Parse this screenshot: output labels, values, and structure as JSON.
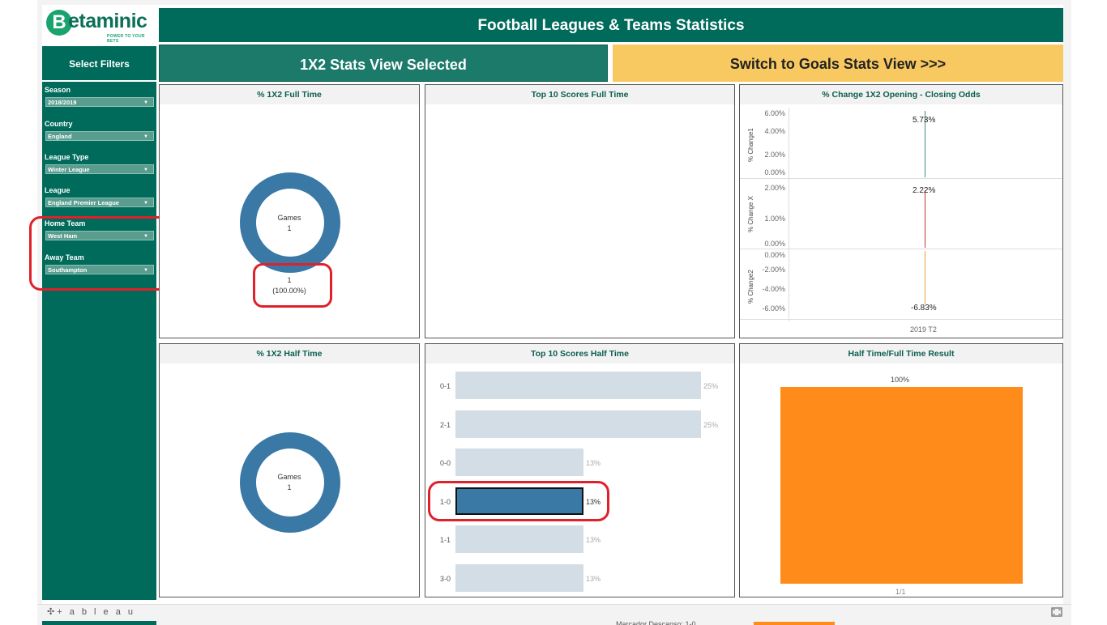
{
  "brand": {
    "name_b": "B",
    "name_rest": "etaminic",
    "tagline": "POWER TO YOUR BETS"
  },
  "header": {
    "title": "Football Leagues & Teams Statistics"
  },
  "sidebar": {
    "heading": "Select Filters",
    "filters": [
      {
        "label": "Season",
        "value": "2018/2019"
      },
      {
        "label": "Country",
        "value": "England"
      },
      {
        "label": "League Type",
        "value": "Winter League"
      },
      {
        "label": "League",
        "value": "England Premier League"
      },
      {
        "label": "Home Team",
        "value": "West Ham"
      },
      {
        "label": "Away Team",
        "value": "Southampton"
      }
    ]
  },
  "toggle": {
    "selected": "1X2 Stats View Selected",
    "switch": "Switch to Goals Stats View >>>"
  },
  "panels": {
    "ft_1x2": {
      "title": "% 1X2 Full Time",
      "center_label": "Games",
      "center_value": "1",
      "slice_count": "1",
      "slice_pct": "(100.00%)"
    },
    "top10_ft": {
      "title": "Top 10 Scores Full Time"
    },
    "odds_change": {
      "title": "% Change 1X2 Opening - Closing Odds",
      "rows": [
        {
          "axis_label": "% Change1",
          "ticks": [
            "6.00%",
            "4.00%",
            "2.00%",
            "0.00%"
          ],
          "value_label": "5.73%",
          "value": 5.73,
          "color": "#3d8a83"
        },
        {
          "axis_label": "% Change X",
          "ticks": [
            "2.00%",
            "1.00%",
            "0.00%"
          ],
          "value_label": "2.22%",
          "value": 2.22,
          "color": "#c0392b"
        },
        {
          "axis_label": "% Change2",
          "ticks": [
            "0.00%",
            "-2.00%",
            "-4.00%",
            "-6.00%"
          ],
          "value_label": "-6.83%",
          "value": -6.83,
          "color": "#e8a33d"
        }
      ],
      "x_label": "2019 T2"
    },
    "ht_1x2": {
      "title": "% 1X2 Half Time",
      "center_label": "Games",
      "center_value": "1"
    },
    "top10_ht": {
      "title": "Top 10 Scores Half Time",
      "bars": [
        {
          "score": "0-1",
          "pct": "25%",
          "value": 25,
          "selected": false
        },
        {
          "score": "2-1",
          "pct": "25%",
          "value": 25,
          "selected": false
        },
        {
          "score": "0-0",
          "pct": "13%",
          "value": 13,
          "selected": false
        },
        {
          "score": "1-0",
          "pct": "13%",
          "value": 13,
          "selected": true
        },
        {
          "score": "1-1",
          "pct": "13%",
          "value": 13,
          "selected": false
        },
        {
          "score": "3-0",
          "pct": "13%",
          "value": 13,
          "selected": false
        }
      ]
    },
    "htft": {
      "title": "Half Time/Full Time Result",
      "bar_label": "100%",
      "bar_value": 100,
      "x_label": "1/1",
      "color": "#ff8c1a"
    }
  },
  "footer": {
    "logo_text": "+ a b l e a u",
    "peek_text": "Marcador Descanso: 1-0"
  },
  "colors": {
    "primary": "#006b5b",
    "accent": "#f9c961",
    "donut": "#3a78a6",
    "bar": "#d3dde5",
    "annotation": "#e0202a"
  }
}
